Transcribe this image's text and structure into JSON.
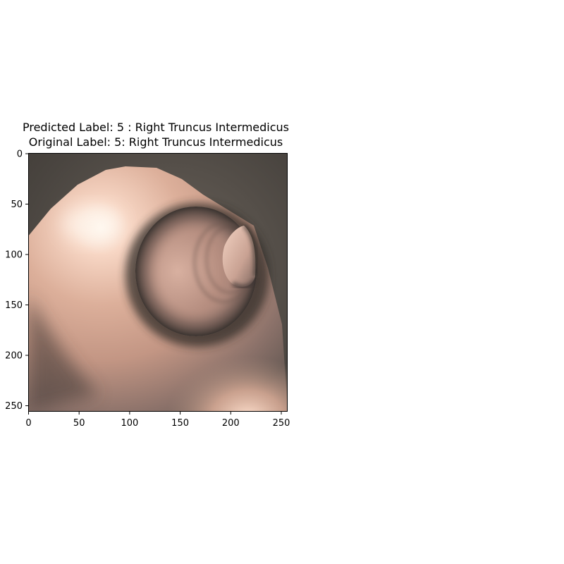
{
  "figure": {
    "title_line1": "Predicted Label: 5 : Right Truncus Intermedicus",
    "title_line2": "Original Label: 5: Right Truncus Intermedicus",
    "image_subject": "bronchoscopy-airway-lumen",
    "x_ticks": [
      "0",
      "50",
      "100",
      "150",
      "200",
      "250"
    ],
    "y_ticks": [
      "0",
      "50",
      "100",
      "150",
      "200",
      "250"
    ],
    "colors": {
      "wall_light": "#f7d2bd",
      "wall_mid": "#c79a86",
      "shadow": "#3c3834"
    }
  }
}
